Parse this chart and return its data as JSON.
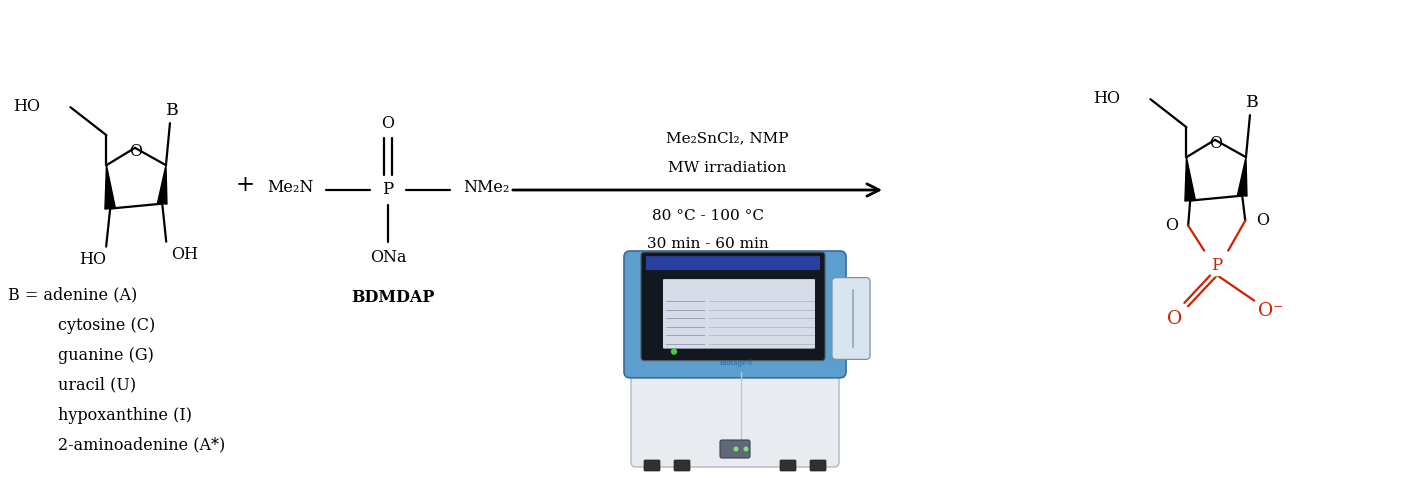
{
  "bg_color": "#ffffff",
  "black": "#000000",
  "red": "#cc2200",
  "figsize": [
    14.04,
    5.0
  ],
  "dpi": 100,
  "reagents_line1": "Me₂SnCl₂, NMP",
  "reagents_line2": "MW irradiation",
  "conditions_line1": "80 °C - 100 °C",
  "conditions_line2": "30 min - 60 min",
  "bdmdap_label": "BDMDAP",
  "b_equal": "B = adenine (A)",
  "b_list": [
    "cytosine (C)",
    "guanine (G)",
    "uracil (U)",
    "hypoxanthine (I)",
    "2-aminoadenine (A*)"
  ],
  "font_size": 11.5,
  "lw": 1.6
}
